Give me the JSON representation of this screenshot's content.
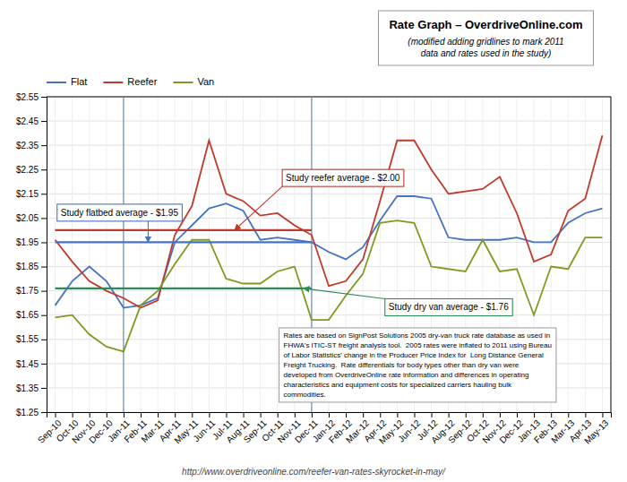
{
  "chart_data": {
    "type": "line",
    "title": "Rate Graph – OverdriveOnline.com",
    "subtitle": "(modified adding gridlines to mark 2011\ndata and rates used in the study)",
    "source": "http://www.overdriveonline.com/reefer-van-rates-skyrocket-in-may/",
    "categories": [
      "Sep-10",
      "Oct-10",
      "Nov-10",
      "Dec-10",
      "Jan-11",
      "Feb-11",
      "Mar-11",
      "Apr-11",
      "May-11",
      "Jun-11",
      "Jul-11",
      "Aug-11",
      "Sep-11",
      "Oct-11",
      "Nov-11",
      "Dec-11",
      "Jan-12",
      "Feb-12",
      "Mar-12",
      "Apr-12",
      "May-12",
      "Jun-12",
      "Jul-12",
      "Aug-12",
      "Sep-12",
      "Oct-12",
      "Nov-12",
      "Dec-12",
      "Jan-13",
      "Feb-13",
      "Mar-13",
      "Apr-13",
      "May-13"
    ],
    "series": [
      {
        "name": "Flat",
        "color": "#4472C4",
        "values": [
          1.69,
          1.79,
          1.85,
          1.79,
          1.68,
          1.69,
          1.72,
          1.95,
          2.02,
          2.09,
          2.11,
          2.08,
          1.96,
          1.97,
          1.96,
          1.95,
          1.91,
          1.88,
          1.93,
          2.04,
          2.14,
          2.14,
          2.13,
          1.97,
          1.96,
          1.96,
          1.96,
          1.97,
          1.95,
          1.95,
          2.03,
          2.07,
          2.09
        ]
      },
      {
        "name": "Reefer",
        "color": "#C0392B",
        "values": [
          1.96,
          1.87,
          1.79,
          1.75,
          1.72,
          1.68,
          1.71,
          1.98,
          2.1,
          2.37,
          2.15,
          2.12,
          2.06,
          2.07,
          2.02,
          1.98,
          1.77,
          1.79,
          1.88,
          2.12,
          2.37,
          2.37,
          2.25,
          2.15,
          2.16,
          2.17,
          2.22,
          2.07,
          1.87,
          1.9,
          2.08,
          2.13,
          2.39
        ]
      },
      {
        "name": "Van",
        "color": "#7F9A20",
        "values": [
          1.64,
          1.65,
          1.57,
          1.52,
          1.5,
          1.69,
          1.75,
          1.86,
          1.96,
          1.96,
          1.8,
          1.78,
          1.78,
          1.83,
          1.85,
          1.63,
          1.63,
          1.73,
          1.82,
          2.03,
          2.04,
          2.03,
          1.85,
          1.84,
          1.83,
          1.96,
          1.83,
          1.84,
          1.65,
          1.85,
          1.84,
          1.97,
          1.97
        ]
      }
    ],
    "reference_lines": [
      {
        "value": 1.95,
        "from": "Sep-10",
        "to": "Dec-11",
        "color": "#4472C4",
        "label": "Study flatbed average - $1.95"
      },
      {
        "value": 2.0,
        "from": "Sep-10",
        "to": "Dec-11",
        "color": "#C0392B",
        "label": "Study reefer average - $2.00"
      },
      {
        "value": 1.76,
        "from": "Sep-10",
        "to": "Dec-11",
        "color": "#2E8B57",
        "label": "Study dry van average - $1.76"
      }
    ],
    "vertical_lines": [
      {
        "x": "Jan-11",
        "color": "#6090C0"
      },
      {
        "x": "Dec-11",
        "color": "#6090C0"
      }
    ],
    "notes": "Rates are based on SignPost Solutions 2005 dry-van truck rate database as used in\nFHWA's ITIC-ST freight analysis tool.  2005 rates were inflated to 2011 using Bureau\nof Labor Statistics' change in the Producer Price Index for  Long Distance General\nFreight Trucking.  Rate differentials for body types other than dry van were\ndeveloped from OverdriveOnline rate information and differences in operating\ncharacteristics and equipment costs for specialized carriers hauling bulk\ncommodities.",
    "ylim": [
      1.25,
      2.55
    ],
    "yticks": [
      {
        "value": 1.25,
        "label": "$1.25"
      },
      {
        "value": 1.35,
        "label": "$1.35"
      },
      {
        "value": 1.45,
        "label": "$1.45"
      },
      {
        "value": 1.55,
        "label": "$1.55"
      },
      {
        "value": 1.65,
        "label": "$1.65"
      },
      {
        "value": 1.75,
        "label": "$1.75"
      },
      {
        "value": 1.85,
        "label": "$1.85"
      },
      {
        "value": 1.95,
        "label": "$1.95"
      },
      {
        "value": 2.05,
        "label": "$2.05"
      },
      {
        "value": 2.15,
        "label": "$2.15"
      },
      {
        "value": 2.25,
        "label": "$2.25"
      },
      {
        "value": 2.35,
        "label": "$2.35"
      },
      {
        "value": 2.45,
        "label": "$2.45"
      },
      {
        "value": 2.55,
        "label": "$2.55"
      }
    ],
    "grid": true,
    "legend": "top"
  }
}
